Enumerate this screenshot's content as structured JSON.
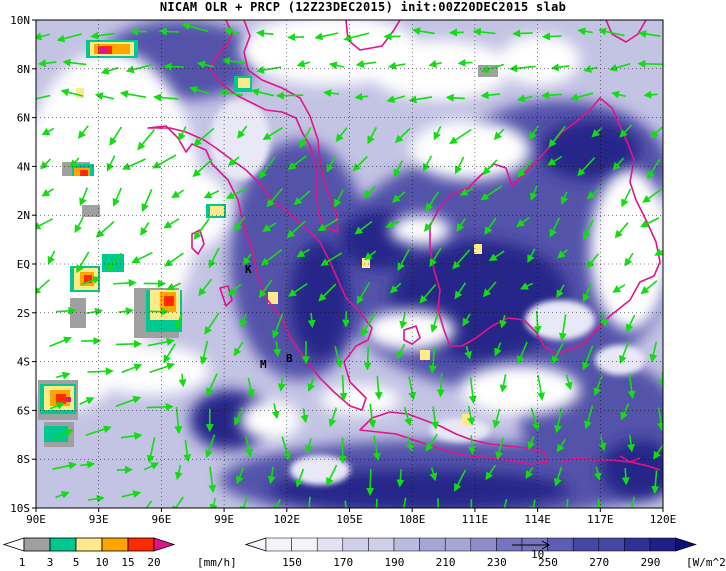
{
  "title": "NICAM OLR + PRCP (12Z23DEC2015) init:00Z20DEC2015 slab",
  "lat_labels": [
    "10N",
    "8N",
    "6N",
    "4N",
    "2N",
    "EQ",
    "2S",
    "4S",
    "6S",
    "8S",
    "10S"
  ],
  "lon_labels": [
    "90E",
    "93E",
    "96E",
    "99E",
    "102E",
    "105E",
    "108E",
    "111E",
    "114E",
    "117E",
    "120E"
  ],
  "map_letters": [
    "K",
    "M",
    "B"
  ],
  "prcp_bar": {
    "labels": [
      "1",
      "3",
      "5",
      "10",
      "15",
      "20"
    ],
    "unit": "[mm/h]",
    "colors": [
      "#ffffff",
      "#a0a0a0",
      "#00c891",
      "#ffea8a",
      "#ffa500",
      "#ff2a00",
      "#e0158a"
    ]
  },
  "olr_bar": {
    "labels": [
      "150",
      "170",
      "190",
      "210",
      "230",
      "250",
      "270",
      "290"
    ],
    "unit": "[W/m^2]",
    "vector_ref": "10",
    "colors": [
      "#f4f4fb",
      "#e2e2f2",
      "#cfcfe9",
      "#bbbbe0",
      "#a6a6d6",
      "#8e8ecb",
      "#7575bf",
      "#5d5db1",
      "#4646a3",
      "#313194",
      "#1f1f85",
      "#10107a"
    ]
  },
  "colors": {
    "coastline": "#e0158a",
    "wind_vector": "#11dd11",
    "dark_cloud": "#1f1f85"
  }
}
